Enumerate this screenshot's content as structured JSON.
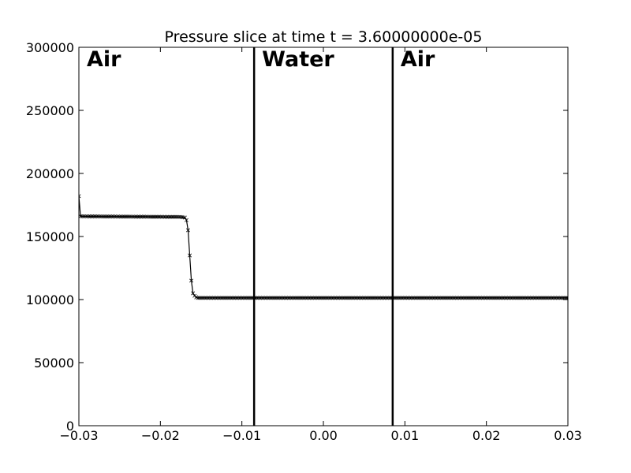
{
  "chart_data": {
    "type": "line",
    "title": "Pressure slice at time t = 3.60000000e-05",
    "xlabel": "",
    "ylabel": "",
    "xlim": [
      -0.03,
      0.03
    ],
    "ylim": [
      0,
      300000
    ],
    "x_ticks": [
      -0.03,
      -0.02,
      -0.01,
      0.0,
      0.01,
      0.02,
      0.03
    ],
    "x_tick_labels": [
      "−0.03",
      "−0.02",
      "−0.01",
      "0.00",
      "0.01",
      "0.02",
      "0.03"
    ],
    "y_ticks": [
      0,
      50000,
      100000,
      150000,
      200000,
      250000,
      300000
    ],
    "y_tick_labels": [
      "0",
      "50000",
      "100000",
      "150000",
      "200000",
      "250000",
      "300000"
    ],
    "grid": false,
    "marker": "x",
    "series": [
      {
        "color": "#000000",
        "points": [
          [
            -0.03,
            182000
          ],
          [
            -0.0298,
            166000
          ],
          [
            -0.0175,
            165500
          ],
          [
            -0.017,
            165000
          ],
          [
            -0.0168,
            163000
          ],
          [
            -0.0166,
            155000
          ],
          [
            -0.0164,
            135000
          ],
          [
            -0.0162,
            115000
          ],
          [
            -0.016,
            105000
          ],
          [
            -0.0157,
            102000
          ],
          [
            -0.0154,
            101300
          ],
          [
            0.03,
            101300
          ]
        ]
      }
    ],
    "interfaces": [
      -0.0085,
      0.0085
    ],
    "region_labels": [
      "Air",
      "Water",
      "Air"
    ]
  }
}
